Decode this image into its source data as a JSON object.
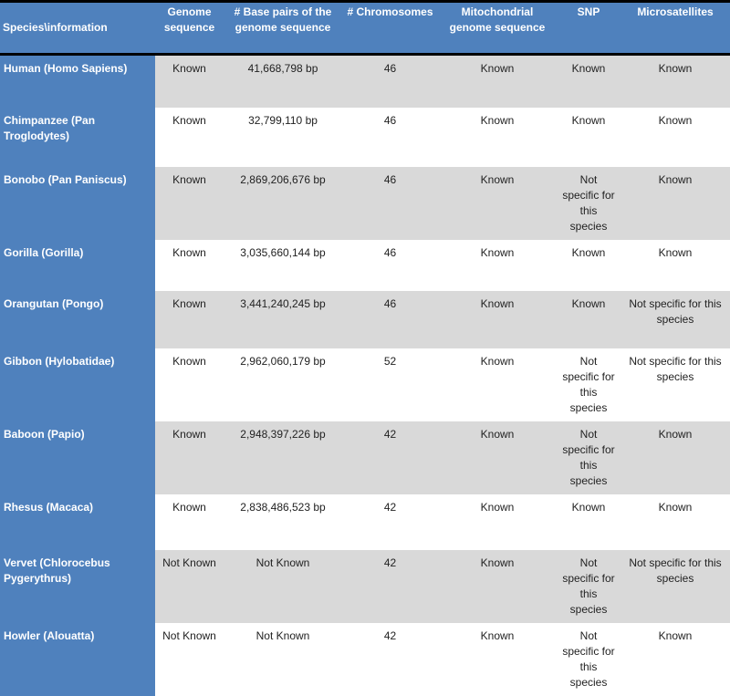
{
  "table": {
    "headers": [
      "Species\\information",
      "Genome sequence",
      "# Base pairs of the genome sequence",
      "# Chromosomes",
      "Mitochondrial genome sequence",
      "SNP",
      "Microsatellites"
    ],
    "rows": [
      [
        "Human (Homo Sapiens)",
        "Known",
        "41,668,798 bp",
        "46",
        "Known",
        "Known",
        "Known"
      ],
      [
        "Chimpanzee (Pan Troglodytes)",
        "Known",
        "32,799,110 bp",
        "46",
        "Known",
        "Known",
        "Known"
      ],
      [
        "Bonobo (Pan Paniscus)",
        "Known",
        "2,869,206,676 bp",
        "46",
        "Known",
        "Not specific for this species",
        "Known"
      ],
      [
        "Gorilla (Gorilla)",
        "Known",
        "3,035,660,144 bp",
        "46",
        "Known",
        "Known",
        "Known"
      ],
      [
        "Orangutan (Pongo)",
        "Known",
        "3,441,240,245 bp",
        "46",
        "Known",
        "Known",
        "Not specific for this species"
      ],
      [
        "Gibbon (Hylobatidae)",
        "Known",
        "2,962,060,179 bp",
        "52",
        "Known",
        "Not specific for this species",
        "Not specific for this species"
      ],
      [
        "Baboon (Papio)",
        "Known",
        "2,948,397,226 bp",
        "42",
        "Known",
        "Not specific for this species",
        "Known"
      ],
      [
        "Rhesus (Macaca)",
        "Known",
        "2,838,486,523 bp",
        "42",
        "Known",
        "Known",
        "Known"
      ],
      [
        "Vervet (Chlorocebus Pygerythrus)",
        "Not Known",
        "Not Known",
        "42",
        "Known",
        "Not specific for this species",
        "Not specific for this species"
      ],
      [
        "Howler (Alouatta)",
        "Not Known",
        "Not Known",
        "42",
        "Known",
        "Not specific for this species",
        "Known"
      ]
    ]
  },
  "colors": {
    "header_bg": "#4f81bd",
    "stripe": "#d9d9d9"
  }
}
